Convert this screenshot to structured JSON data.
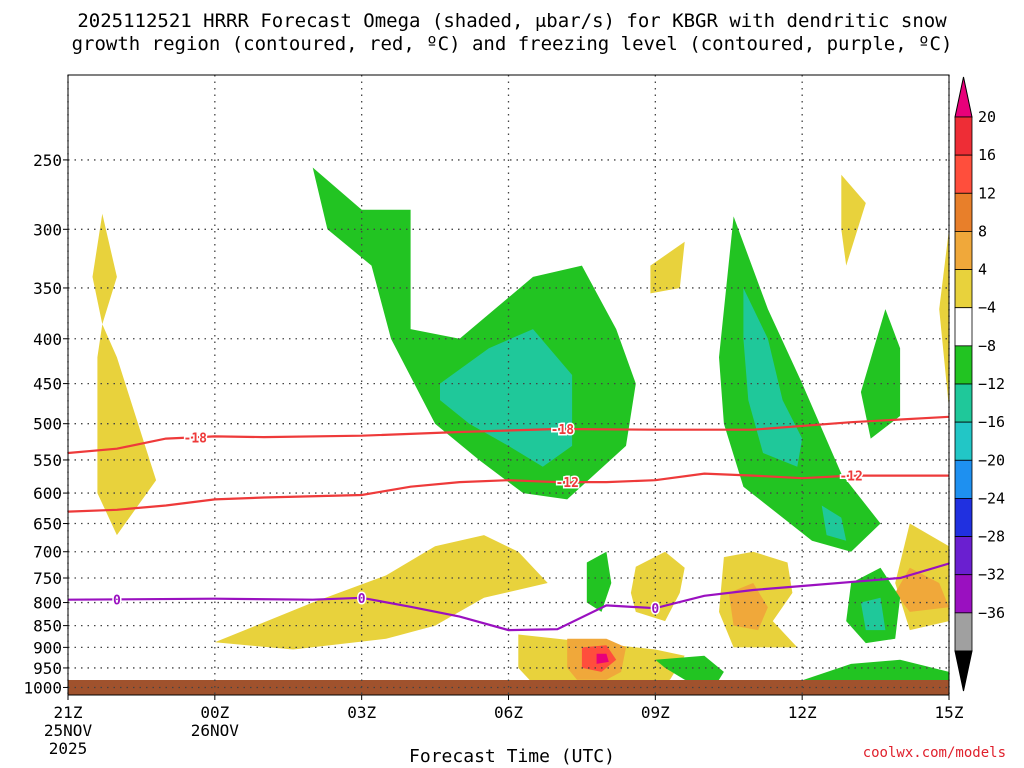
{
  "title_line1": "2025112521 HRRR Forecast Omega (shaded, μbar/s) for KBGR with dendritic snow",
  "title_line2": "growth region (contoured, red, ºC) and freezing level (contoured, purple, ºC)",
  "credit": "coolwx.com/models",
  "chart_data": {
    "type": "contour",
    "xlabel": "Forecast Time (UTC)",
    "x_ticks": [
      {
        "hour": 0,
        "label": "21Z",
        "sub1": "25NOV",
        "sub2": "2025"
      },
      {
        "hour": 3,
        "label": "00Z",
        "sub1": "26NOV",
        "sub2": ""
      },
      {
        "hour": 6,
        "label": "03Z",
        "sub1": "",
        "sub2": ""
      },
      {
        "hour": 9,
        "label": "06Z",
        "sub1": "",
        "sub2": ""
      },
      {
        "hour": 12,
        "label": "09Z",
        "sub1": "",
        "sub2": ""
      },
      {
        "hour": 15,
        "label": "12Z",
        "sub1": "",
        "sub2": ""
      },
      {
        "hour": 18,
        "label": "15Z",
        "sub1": "",
        "sub2": ""
      }
    ],
    "y_ticks": [
      250,
      300,
      350,
      400,
      450,
      500,
      550,
      600,
      650,
      700,
      750,
      800,
      850,
      900,
      950,
      1000
    ],
    "y_range_hpa": [
      200,
      1020
    ],
    "y_scale": "log-pressure",
    "colorbar": {
      "labels": [
        "20",
        "16",
        "12",
        "8",
        "4",
        "−4",
        "−8",
        "−12",
        "−16",
        "−20",
        "−24",
        "−28",
        "−32",
        "−36"
      ],
      "colors": [
        "#e8007a",
        "#ee2d36",
        "#ff4e3c",
        "#e87f2a",
        "#f0a83a",
        "#e8d23c",
        "#ffffff",
        "#22c422",
        "#1fc89a",
        "#22c6c6",
        "#1e90f0",
        "#2030e0",
        "#6a1fd0",
        "#9a10c0",
        "#a0a0a0",
        "#000000"
      ]
    },
    "contours": [
      {
        "name": "-18",
        "color": "#ee3a3a",
        "label_hours": [
          2.6,
          10.1
        ],
        "points": [
          [
            0,
            540
          ],
          [
            1,
            534
          ],
          [
            2,
            520
          ],
          [
            3,
            517
          ],
          [
            4,
            518
          ],
          [
            6,
            516
          ],
          [
            8,
            511
          ],
          [
            10,
            507
          ],
          [
            12,
            508
          ],
          [
            14,
            508
          ],
          [
            16,
            498
          ],
          [
            18,
            491
          ]
        ]
      },
      {
        "name": "-12",
        "color": "#ee3a3a",
        "label_hours": [
          10.2,
          16.0
        ],
        "points": [
          [
            0,
            630
          ],
          [
            1,
            627
          ],
          [
            2,
            620
          ],
          [
            3,
            610
          ],
          [
            4,
            607
          ],
          [
            6,
            603
          ],
          [
            7,
            590
          ],
          [
            8,
            583
          ],
          [
            9,
            580
          ],
          [
            10,
            583
          ],
          [
            11,
            583
          ],
          [
            12,
            580
          ],
          [
            13,
            570
          ],
          [
            14,
            573
          ],
          [
            15,
            577
          ],
          [
            16,
            573
          ],
          [
            18,
            573
          ]
        ]
      },
      {
        "name": "0",
        "color": "#9a10c0",
        "label_hours": [
          1.0,
          6.0,
          12.0
        ],
        "points": [
          [
            0,
            794
          ],
          [
            3,
            792
          ],
          [
            5,
            794
          ],
          [
            6,
            790
          ],
          [
            7,
            809
          ],
          [
            8,
            830
          ],
          [
            9,
            860
          ],
          [
            10,
            858
          ],
          [
            11,
            806
          ],
          [
            12,
            812
          ],
          [
            13,
            786
          ],
          [
            14,
            774
          ],
          [
            15,
            766
          ],
          [
            17,
            750
          ],
          [
            18,
            722
          ]
        ]
      }
    ],
    "regions": [
      {
        "level": "4 to 8",
        "color": "#e8d23c",
        "points": [
          [
            0.7,
            288
          ],
          [
            1.0,
            340
          ],
          [
            0.7,
            385
          ],
          [
            1.0,
            420
          ],
          [
            1.8,
            580
          ],
          [
            1.0,
            670
          ],
          [
            0.6,
            600
          ],
          [
            0.6,
            420
          ],
          [
            0.7,
            385
          ],
          [
            0.5,
            340
          ]
        ]
      },
      {
        "level": "4 to 8",
        "color": "#e8d23c",
        "points": [
          [
            3.0,
            888
          ],
          [
            5,
            800
          ],
          [
            6.5,
            745
          ],
          [
            7.5,
            690
          ],
          [
            8.5,
            670
          ],
          [
            9.2,
            700
          ],
          [
            9.8,
            760
          ],
          [
            8.5,
            790
          ],
          [
            7.5,
            850
          ],
          [
            6.5,
            880
          ],
          [
            4.6,
            905
          ]
        ]
      },
      {
        "level": "4 to 8",
        "color": "#e8d23c",
        "points": [
          [
            9.2,
            870
          ],
          [
            10,
            880
          ],
          [
            12,
            905
          ],
          [
            12.6,
            920
          ],
          [
            12.3,
            980
          ],
          [
            11.5,
            1000
          ],
          [
            10,
            1000
          ],
          [
            9.5,
            990
          ],
          [
            9.2,
            950
          ]
        ]
      },
      {
        "level": "4 to 8",
        "color": "#e8d23c",
        "points": [
          [
            11.6,
            728
          ],
          [
            12.2,
            700
          ],
          [
            12.6,
            730
          ],
          [
            12.5,
            780
          ],
          [
            12.2,
            840
          ],
          [
            11.6,
            820
          ],
          [
            11.5,
            780
          ]
        ]
      },
      {
        "level": "4 to 8",
        "color": "#e8d23c",
        "points": [
          [
            13.4,
            710
          ],
          [
            14,
            700
          ],
          [
            14.7,
            720
          ],
          [
            14.8,
            780
          ],
          [
            14.4,
            840
          ],
          [
            14.9,
            900
          ],
          [
            13.6,
            900
          ],
          [
            13.3,
            820
          ]
        ]
      },
      {
        "level": "4 to 8",
        "color": "#e8d23c",
        "points": [
          [
            17.2,
            650
          ],
          [
            18,
            690
          ],
          [
            18,
            840
          ],
          [
            17.2,
            860
          ],
          [
            16.9,
            760
          ]
        ]
      },
      {
        "level": "4 to 8",
        "color": "#e8d23c",
        "points": [
          [
            17.8,
            370
          ],
          [
            18,
            300
          ],
          [
            18,
            480
          ]
        ]
      },
      {
        "level": "4 to 8",
        "color": "#e8d23c",
        "points": [
          [
            15.8,
            260
          ],
          [
            16.3,
            280
          ],
          [
            15.9,
            330
          ],
          [
            15.8,
            300
          ]
        ]
      },
      {
        "level": "4 to 8",
        "color": "#e8d23c",
        "points": [
          [
            11.9,
            330
          ],
          [
            12.6,
            310
          ],
          [
            12.5,
            350
          ],
          [
            11.9,
            355
          ]
        ]
      },
      {
        "level": "8 to 12",
        "color": "#f0a83a",
        "points": [
          [
            13.5,
            780
          ],
          [
            14,
            760
          ],
          [
            14.3,
            810
          ],
          [
            14.1,
            860
          ],
          [
            13.6,
            850
          ]
        ]
      },
      {
        "level": "8 to 12",
        "color": "#f0a83a",
        "points": [
          [
            17.2,
            730
          ],
          [
            17.8,
            760
          ],
          [
            18,
            810
          ],
          [
            17.2,
            820
          ],
          [
            16.9,
            780
          ]
        ]
      },
      {
        "level": "8 to 12",
        "color": "#f0a83a",
        "points": [
          [
            10.2,
            880
          ],
          [
            11.0,
            880
          ],
          [
            11.4,
            900
          ],
          [
            11.3,
            960
          ],
          [
            11,
            980
          ],
          [
            10.4,
            980
          ],
          [
            10.2,
            950
          ]
        ]
      },
      {
        "level": "12+",
        "color": "#ff4e3c",
        "points": [
          [
            10.5,
            900
          ],
          [
            11.0,
            895
          ],
          [
            11.2,
            930
          ],
          [
            10.9,
            960
          ],
          [
            10.5,
            950
          ]
        ]
      },
      {
        "level": "20+",
        "color": "#e8007a",
        "points": [
          [
            10.8,
            915
          ],
          [
            11.0,
            915
          ],
          [
            11.05,
            935
          ],
          [
            10.8,
            940
          ]
        ]
      },
      {
        "level": "-4 to -8",
        "color": "#22c422",
        "points": [
          [
            5.0,
            255
          ],
          [
            6,
            285
          ],
          [
            7.0,
            285
          ],
          [
            7.0,
            390
          ],
          [
            8.0,
            400
          ],
          [
            9.5,
            340
          ],
          [
            10.5,
            330
          ],
          [
            11.2,
            390
          ],
          [
            11.6,
            450
          ],
          [
            11.4,
            530
          ],
          [
            10.2,
            610
          ],
          [
            9.3,
            600
          ],
          [
            8.4,
            550
          ],
          [
            7.5,
            500
          ],
          [
            6.6,
            400
          ],
          [
            6.2,
            330
          ],
          [
            5.3,
            300
          ]
        ]
      },
      {
        "level": "-4 to -8",
        "color": "#22c422",
        "points": [
          [
            13.6,
            290
          ],
          [
            14.3,
            370
          ],
          [
            15.0,
            450
          ],
          [
            15.8,
            570
          ],
          [
            16.6,
            650
          ],
          [
            16.0,
            700
          ],
          [
            15.2,
            680
          ],
          [
            13.8,
            590
          ],
          [
            13.4,
            500
          ],
          [
            13.3,
            420
          ]
        ]
      },
      {
        "level": "-4 to -8",
        "color": "#22c422",
        "points": [
          [
            16.7,
            370
          ],
          [
            17.0,
            410
          ],
          [
            17.0,
            490
          ],
          [
            16.4,
            520
          ],
          [
            16.2,
            460
          ]
        ]
      },
      {
        "level": "-4 to -8",
        "color": "#22c422",
        "points": [
          [
            16.0,
            760
          ],
          [
            16.6,
            730
          ],
          [
            17.0,
            790
          ],
          [
            16.9,
            880
          ],
          [
            16.3,
            890
          ],
          [
            15.9,
            840
          ]
        ]
      },
      {
        "level": "-4 to -8",
        "color": "#22c422",
        "points": [
          [
            10.6,
            720
          ],
          [
            11.0,
            700
          ],
          [
            11.1,
            760
          ],
          [
            10.9,
            820
          ],
          [
            10.6,
            800
          ]
        ]
      },
      {
        "level": "-4 to -8",
        "color": "#22c422",
        "points": [
          [
            12.0,
            930
          ],
          [
            13,
            920
          ],
          [
            13.4,
            960
          ],
          [
            13.2,
            1000
          ],
          [
            12.6,
            980
          ],
          [
            12.2,
            950
          ]
        ]
      },
      {
        "level": "-4 to -8",
        "color": "#22c422",
        "points": [
          [
            14.8,
            990
          ],
          [
            16,
            940
          ],
          [
            17.0,
            930
          ],
          [
            18,
            960
          ],
          [
            18,
            990
          ],
          [
            16.5,
            990
          ]
        ]
      },
      {
        "level": "-8 to -12",
        "color": "#1fc89a",
        "points": [
          [
            7.6,
            450
          ],
          [
            8.6,
            410
          ],
          [
            9.5,
            390
          ],
          [
            10.3,
            440
          ],
          [
            10.3,
            530
          ],
          [
            9.7,
            560
          ],
          [
            9.0,
            530
          ],
          [
            8.2,
            500
          ],
          [
            7.6,
            470
          ]
        ]
      },
      {
        "level": "-8 to -12",
        "color": "#1fc89a",
        "points": [
          [
            13.8,
            350
          ],
          [
            14.3,
            400
          ],
          [
            14.6,
            470
          ],
          [
            15.0,
            520
          ],
          [
            14.9,
            560
          ],
          [
            14.2,
            540
          ],
          [
            13.9,
            470
          ],
          [
            13.8,
            400
          ]
        ]
      },
      {
        "level": "-8 to -12",
        "color": "#1fc89a",
        "points": [
          [
            15.4,
            620
          ],
          [
            15.8,
            640
          ],
          [
            15.9,
            680
          ],
          [
            15.5,
            670
          ]
        ]
      },
      {
        "level": "-8 to -12",
        "color": "#1fc89a",
        "points": [
          [
            16.2,
            800
          ],
          [
            16.6,
            790
          ],
          [
            16.7,
            860
          ],
          [
            16.3,
            860
          ]
        ]
      }
    ]
  }
}
